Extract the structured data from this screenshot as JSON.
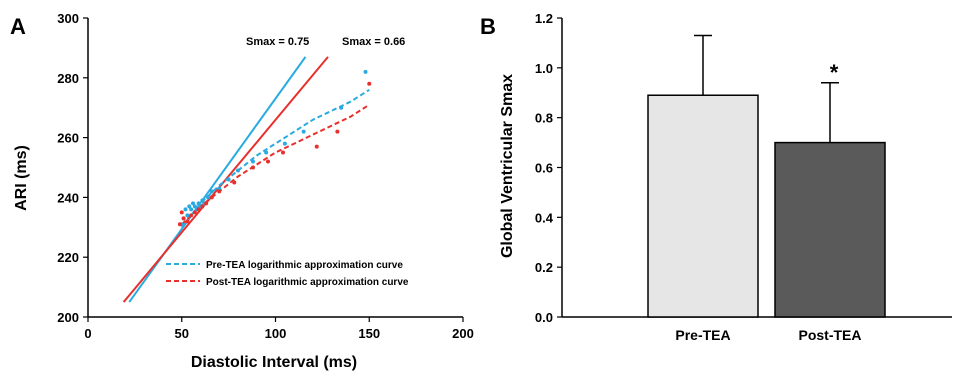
{
  "chart_data": [
    {
      "panel": "A",
      "type": "scatter",
      "xlabel": "Diastolic Interval (ms)",
      "ylabel": "ARI (ms)",
      "xlim": [
        0,
        200
      ],
      "ylim": [
        200,
        300
      ],
      "xticks": [
        0,
        50,
        100,
        150,
        200
      ],
      "yticks": [
        200,
        220,
        240,
        260,
        280,
        300
      ],
      "annotations": [
        {
          "text": "Smax = 0.75",
          "x": 118,
          "y": 295
        },
        {
          "text": "Smax = 0.66",
          "x": 150,
          "y": 295
        }
      ],
      "series": [
        {
          "name": "Pre-TEA logarithmic approximation curve",
          "color": "#29abe2",
          "points": [
            [
              50,
              231
            ],
            [
              51,
              233
            ],
            [
              52,
              236
            ],
            [
              53,
              234
            ],
            [
              54,
              237
            ],
            [
              55,
              236
            ],
            [
              56,
              238
            ],
            [
              57,
              237
            ],
            [
              58,
              236
            ],
            [
              59,
              238
            ],
            [
              60,
              237
            ],
            [
              61,
              239
            ],
            [
              62,
              238
            ],
            [
              64,
              240
            ],
            [
              66,
              242
            ],
            [
              70,
              243
            ],
            [
              75,
              246
            ],
            [
              80,
              249
            ],
            [
              88,
              252
            ],
            [
              95,
              255
            ],
            [
              105,
              258
            ],
            [
              115,
              262
            ],
            [
              135,
              270
            ],
            [
              148,
              282
            ]
          ],
          "fit": [
            [
              50,
              230
            ],
            [
              60,
              238
            ],
            [
              70,
              244
            ],
            [
              80,
              249
            ],
            [
              90,
              254
            ],
            [
              100,
              258
            ],
            [
              110,
              262
            ],
            [
              120,
              266
            ],
            [
              130,
              269
            ],
            [
              140,
              272
            ],
            [
              150,
              276
            ]
          ],
          "tangent": [
            [
              22,
              205
            ],
            [
              116,
              287
            ]
          ]
        },
        {
          "name": "Post-TEA logarithmic approximation curve",
          "color": "#e8302c",
          "points": [
            [
              49,
              231
            ],
            [
              50,
              235
            ],
            [
              51,
              233
            ],
            [
              53,
              232
            ],
            [
              55,
              234
            ],
            [
              57,
              235
            ],
            [
              59,
              236
            ],
            [
              61,
              237
            ],
            [
              63,
              238
            ],
            [
              66,
              240
            ],
            [
              70,
              242
            ],
            [
              78,
              245
            ],
            [
              88,
              250
            ],
            [
              96,
              252
            ],
            [
              104,
              255
            ],
            [
              122,
              257
            ],
            [
              133,
              262
            ],
            [
              150,
              278
            ]
          ],
          "fit": [
            [
              50,
              231
            ],
            [
              60,
              237
            ],
            [
              70,
              242
            ],
            [
              80,
              247
            ],
            [
              90,
              251
            ],
            [
              100,
              255
            ],
            [
              110,
              258
            ],
            [
              120,
              261
            ],
            [
              130,
              264
            ],
            [
              140,
              267
            ],
            [
              150,
              271
            ]
          ],
          "tangent": [
            [
              19,
              205
            ],
            [
              128,
              287
            ]
          ]
        }
      ]
    },
    {
      "panel": "B",
      "type": "bar",
      "ylabel": "Global Ventricular Smax",
      "categories": [
        "Pre-TEA",
        "Post-TEA"
      ],
      "values": [
        0.89,
        0.7
      ],
      "errors": [
        0.24,
        0.24
      ],
      "colors": [
        "#e6e6e6",
        "#5a5a5a"
      ],
      "ylim": [
        0,
        1.2
      ],
      "yticks": [
        "0.0",
        "0.2",
        "0.4",
        "0.6",
        "0.8",
        "1.0",
        "1.2"
      ],
      "significance": [
        "",
        "*"
      ]
    }
  ]
}
